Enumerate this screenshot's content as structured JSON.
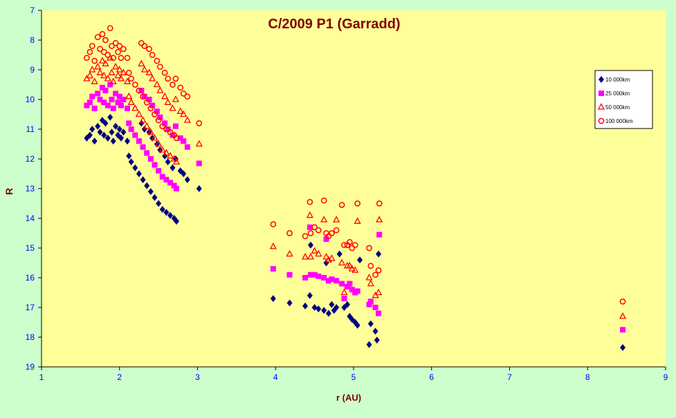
{
  "chart_data": {
    "type": "scatter",
    "title": "C/2009 P1 (Garradd)",
    "xlabel": "r (AU)",
    "ylabel": "R",
    "xlim": [
      1,
      9
    ],
    "ylim": [
      7,
      19
    ],
    "y_inverted": true,
    "xticks": [
      "1",
      "2",
      "3",
      "4",
      "5",
      "6",
      "7",
      "8",
      "9"
    ],
    "yticks": [
      "7",
      "8",
      "9",
      "10",
      "11",
      "12",
      "13",
      "14",
      "15",
      "16",
      "17",
      "18",
      "19"
    ],
    "legend_position": "right",
    "grid": false,
    "colors": {
      "background": "#ccffcc",
      "plot_area": "#ffff99",
      "title": "#800000",
      "axis_labels": "#800000",
      "tick_labels": "#0000ff"
    },
    "series": [
      {
        "name": "10 000km",
        "marker": "diamond",
        "color": "#000080",
        "points": [
          [
            1.58,
            11.3
          ],
          [
            1.62,
            11.2
          ],
          [
            1.65,
            11.0
          ],
          [
            1.68,
            11.4
          ],
          [
            1.72,
            10.9
          ],
          [
            1.75,
            11.1
          ],
          [
            1.78,
            10.7
          ],
          [
            1.8,
            11.2
          ],
          [
            1.82,
            10.8
          ],
          [
            1.85,
            11.3
          ],
          [
            1.88,
            10.6
          ],
          [
            1.9,
            11.1
          ],
          [
            1.92,
            11.4
          ],
          [
            1.95,
            10.9
          ],
          [
            1.98,
            11.2
          ],
          [
            2.0,
            11.0
          ],
          [
            2.02,
            11.3
          ],
          [
            2.05,
            11.1
          ],
          [
            2.1,
            11.4
          ],
          [
            2.12,
            11.9
          ],
          [
            2.15,
            12.1
          ],
          [
            2.2,
            12.3
          ],
          [
            2.25,
            12.5
          ],
          [
            2.3,
            12.7
          ],
          [
            2.35,
            12.9
          ],
          [
            2.4,
            13.1
          ],
          [
            2.45,
            13.3
          ],
          [
            2.5,
            13.5
          ],
          [
            2.55,
            13.7
          ],
          [
            2.6,
            13.8
          ],
          [
            2.65,
            13.9
          ],
          [
            2.7,
            14.0
          ],
          [
            2.73,
            14.1
          ],
          [
            2.28,
            10.8
          ],
          [
            2.32,
            11.0
          ],
          [
            2.38,
            11.1
          ],
          [
            2.42,
            11.3
          ],
          [
            2.48,
            11.5
          ],
          [
            2.52,
            11.7
          ],
          [
            2.58,
            11.9
          ],
          [
            2.62,
            12.1
          ],
          [
            2.68,
            12.3
          ],
          [
            2.72,
            12.0
          ],
          [
            2.78,
            12.4
          ],
          [
            2.82,
            12.5
          ],
          [
            2.87,
            12.7
          ],
          [
            3.02,
            13.0
          ],
          [
            3.97,
            16.7
          ],
          [
            4.18,
            16.85
          ],
          [
            4.38,
            16.95
          ],
          [
            4.44,
            16.6
          ],
          [
            4.45,
            14.9
          ],
          [
            4.5,
            17.0
          ],
          [
            4.55,
            17.05
          ],
          [
            4.62,
            17.1
          ],
          [
            4.65,
            15.5
          ],
          [
            4.68,
            17.2
          ],
          [
            4.72,
            16.9
          ],
          [
            4.75,
            17.1
          ],
          [
            4.78,
            17.0
          ],
          [
            4.82,
            15.2
          ],
          [
            4.88,
            17.0
          ],
          [
            4.92,
            16.9
          ],
          [
            4.95,
            17.3
          ],
          [
            4.98,
            17.4
          ],
          [
            5.02,
            17.5
          ],
          [
            5.05,
            17.6
          ],
          [
            5.08,
            15.4
          ],
          [
            5.2,
            18.25
          ],
          [
            5.22,
            17.55
          ],
          [
            5.28,
            17.8
          ],
          [
            5.3,
            18.1
          ],
          [
            5.32,
            15.2
          ],
          [
            8.45,
            18.35
          ]
        ]
      },
      {
        "name": "25 000km",
        "marker": "square",
        "color": "#ff00ff",
        "points": [
          [
            1.58,
            10.2
          ],
          [
            1.62,
            10.1
          ],
          [
            1.65,
            9.9
          ],
          [
            1.68,
            10.3
          ],
          [
            1.72,
            9.8
          ],
          [
            1.75,
            10.0
          ],
          [
            1.78,
            9.6
          ],
          [
            1.8,
            10.1
          ],
          [
            1.82,
            9.7
          ],
          [
            1.85,
            10.2
          ],
          [
            1.88,
            9.5
          ],
          [
            1.9,
            10.0
          ],
          [
            1.92,
            10.3
          ],
          [
            1.95,
            9.8
          ],
          [
            1.98,
            10.1
          ],
          [
            2.0,
            9.9
          ],
          [
            2.02,
            10.2
          ],
          [
            2.05,
            10.0
          ],
          [
            2.1,
            10.3
          ],
          [
            2.12,
            10.8
          ],
          [
            2.15,
            11.0
          ],
          [
            2.2,
            11.2
          ],
          [
            2.25,
            11.4
          ],
          [
            2.3,
            11.6
          ],
          [
            2.35,
            11.8
          ],
          [
            2.4,
            12.0
          ],
          [
            2.45,
            12.2
          ],
          [
            2.5,
            12.4
          ],
          [
            2.55,
            12.6
          ],
          [
            2.6,
            12.7
          ],
          [
            2.65,
            12.8
          ],
          [
            2.7,
            12.9
          ],
          [
            2.73,
            13.0
          ],
          [
            2.28,
            9.7
          ],
          [
            2.32,
            9.9
          ],
          [
            2.38,
            10.0
          ],
          [
            2.42,
            10.2
          ],
          [
            2.48,
            10.4
          ],
          [
            2.52,
            10.6
          ],
          [
            2.58,
            10.8
          ],
          [
            2.62,
            11.0
          ],
          [
            2.68,
            11.2
          ],
          [
            2.72,
            10.9
          ],
          [
            2.78,
            11.3
          ],
          [
            2.82,
            11.4
          ],
          [
            2.87,
            11.6
          ],
          [
            3.02,
            12.15
          ],
          [
            3.97,
            15.7
          ],
          [
            4.18,
            15.9
          ],
          [
            4.38,
            16.0
          ],
          [
            4.44,
            14.3
          ],
          [
            4.45,
            15.9
          ],
          [
            4.5,
            15.9
          ],
          [
            4.55,
            15.95
          ],
          [
            4.62,
            16.0
          ],
          [
            4.65,
            14.7
          ],
          [
            4.68,
            16.1
          ],
          [
            4.72,
            16.05
          ],
          [
            4.78,
            16.1
          ],
          [
            4.85,
            16.2
          ],
          [
            4.88,
            16.7
          ],
          [
            4.92,
            16.3
          ],
          [
            4.95,
            16.2
          ],
          [
            4.98,
            16.4
          ],
          [
            5.02,
            16.5
          ],
          [
            5.05,
            16.45
          ],
          [
            5.2,
            16.9
          ],
          [
            5.22,
            16.8
          ],
          [
            5.28,
            17.0
          ],
          [
            5.32,
            17.2
          ],
          [
            5.33,
            14.55
          ],
          [
            8.45,
            17.75
          ]
        ]
      },
      {
        "name": "50 000km",
        "marker": "triangle",
        "color": "#ff0000",
        "points": [
          [
            1.58,
            9.3
          ],
          [
            1.62,
            9.2
          ],
          [
            1.65,
            9.0
          ],
          [
            1.68,
            9.4
          ],
          [
            1.72,
            8.9
          ],
          [
            1.75,
            9.1
          ],
          [
            1.78,
            8.7
          ],
          [
            1.8,
            9.2
          ],
          [
            1.82,
            8.8
          ],
          [
            1.85,
            9.3
          ],
          [
            1.88,
            8.6
          ],
          [
            1.9,
            9.1
          ],
          [
            1.92,
            9.4
          ],
          [
            1.95,
            8.9
          ],
          [
            1.98,
            9.2
          ],
          [
            2.0,
            9.0
          ],
          [
            2.02,
            9.3
          ],
          [
            2.05,
            9.1
          ],
          [
            2.1,
            9.4
          ],
          [
            2.12,
            9.9
          ],
          [
            2.15,
            10.1
          ],
          [
            2.2,
            10.3
          ],
          [
            2.25,
            10.5
          ],
          [
            2.3,
            10.7
          ],
          [
            2.35,
            10.9
          ],
          [
            2.4,
            11.1
          ],
          [
            2.45,
            11.3
          ],
          [
            2.5,
            11.5
          ],
          [
            2.55,
            11.7
          ],
          [
            2.6,
            11.8
          ],
          [
            2.65,
            11.9
          ],
          [
            2.7,
            12.0
          ],
          [
            2.73,
            12.1
          ],
          [
            2.28,
            8.8
          ],
          [
            2.32,
            9.0
          ],
          [
            2.38,
            9.1
          ],
          [
            2.42,
            9.3
          ],
          [
            2.48,
            9.5
          ],
          [
            2.52,
            9.7
          ],
          [
            2.58,
            9.9
          ],
          [
            2.62,
            10.1
          ],
          [
            2.68,
            10.3
          ],
          [
            2.72,
            10.0
          ],
          [
            2.78,
            10.4
          ],
          [
            2.82,
            10.5
          ],
          [
            2.87,
            10.7
          ],
          [
            3.02,
            11.5
          ],
          [
            3.97,
            14.95
          ],
          [
            4.18,
            15.2
          ],
          [
            4.38,
            15.3
          ],
          [
            4.44,
            13.9
          ],
          [
            4.45,
            15.3
          ],
          [
            4.5,
            15.1
          ],
          [
            4.55,
            15.2
          ],
          [
            4.62,
            14.05
          ],
          [
            4.65,
            15.3
          ],
          [
            4.68,
            15.4
          ],
          [
            4.72,
            15.35
          ],
          [
            4.78,
            14.05
          ],
          [
            4.85,
            15.5
          ],
          [
            4.88,
            16.5
          ],
          [
            4.92,
            15.6
          ],
          [
            4.95,
            15.6
          ],
          [
            4.98,
            15.7
          ],
          [
            5.02,
            15.75
          ],
          [
            5.05,
            14.1
          ],
          [
            5.2,
            16.0
          ],
          [
            5.22,
            16.2
          ],
          [
            5.28,
            16.6
          ],
          [
            5.32,
            16.5
          ],
          [
            5.33,
            14.05
          ],
          [
            8.45,
            17.3
          ]
        ]
      },
      {
        "name": "100 000km",
        "marker": "circle",
        "color": "#ff0000",
        "points": [
          [
            1.58,
            8.6
          ],
          [
            1.62,
            8.4
          ],
          [
            1.65,
            8.2
          ],
          [
            1.68,
            8.7
          ],
          [
            1.72,
            7.9
          ],
          [
            1.75,
            8.3
          ],
          [
            1.78,
            7.8
          ],
          [
            1.8,
            8.4
          ],
          [
            1.82,
            8.0
          ],
          [
            1.85,
            8.5
          ],
          [
            1.88,
            7.6
          ],
          [
            1.9,
            8.2
          ],
          [
            1.92,
            8.6
          ],
          [
            1.95,
            8.1
          ],
          [
            1.98,
            8.4
          ],
          [
            2.0,
            8.2
          ],
          [
            2.02,
            8.6
          ],
          [
            2.05,
            8.3
          ],
          [
            2.1,
            8.6
          ],
          [
            2.12,
            9.1
          ],
          [
            2.15,
            9.3
          ],
          [
            2.2,
            9.5
          ],
          [
            2.25,
            9.7
          ],
          [
            2.3,
            9.9
          ],
          [
            2.35,
            10.1
          ],
          [
            2.4,
            10.3
          ],
          [
            2.45,
            10.5
          ],
          [
            2.5,
            10.7
          ],
          [
            2.55,
            10.9
          ],
          [
            2.6,
            11.0
          ],
          [
            2.65,
            11.1
          ],
          [
            2.7,
            11.2
          ],
          [
            2.73,
            11.3
          ],
          [
            2.28,
            8.1
          ],
          [
            2.32,
            8.2
          ],
          [
            2.38,
            8.3
          ],
          [
            2.42,
            8.5
          ],
          [
            2.48,
            8.7
          ],
          [
            2.52,
            8.9
          ],
          [
            2.58,
            9.1
          ],
          [
            2.62,
            9.3
          ],
          [
            2.68,
            9.5
          ],
          [
            2.72,
            9.3
          ],
          [
            2.78,
            9.6
          ],
          [
            2.82,
            9.8
          ],
          [
            2.87,
            9.9
          ],
          [
            3.02,
            10.8
          ],
          [
            3.97,
            14.2
          ],
          [
            4.18,
            14.5
          ],
          [
            4.38,
            14.6
          ],
          [
            4.44,
            13.45
          ],
          [
            4.45,
            14.5
          ],
          [
            4.5,
            14.3
          ],
          [
            4.55,
            14.4
          ],
          [
            4.62,
            13.4
          ],
          [
            4.65,
            14.5
          ],
          [
            4.68,
            14.6
          ],
          [
            4.72,
            14.5
          ],
          [
            4.78,
            14.4
          ],
          [
            4.85,
            13.55
          ],
          [
            4.88,
            14.9
          ],
          [
            4.92,
            14.9
          ],
          [
            4.95,
            14.8
          ],
          [
            4.98,
            15.0
          ],
          [
            5.02,
            14.9
          ],
          [
            5.05,
            13.5
          ],
          [
            5.2,
            15.0
          ],
          [
            5.22,
            15.6
          ],
          [
            5.28,
            15.9
          ],
          [
            5.32,
            15.75
          ],
          [
            5.33,
            13.5
          ],
          [
            8.45,
            16.8
          ]
        ]
      }
    ]
  }
}
